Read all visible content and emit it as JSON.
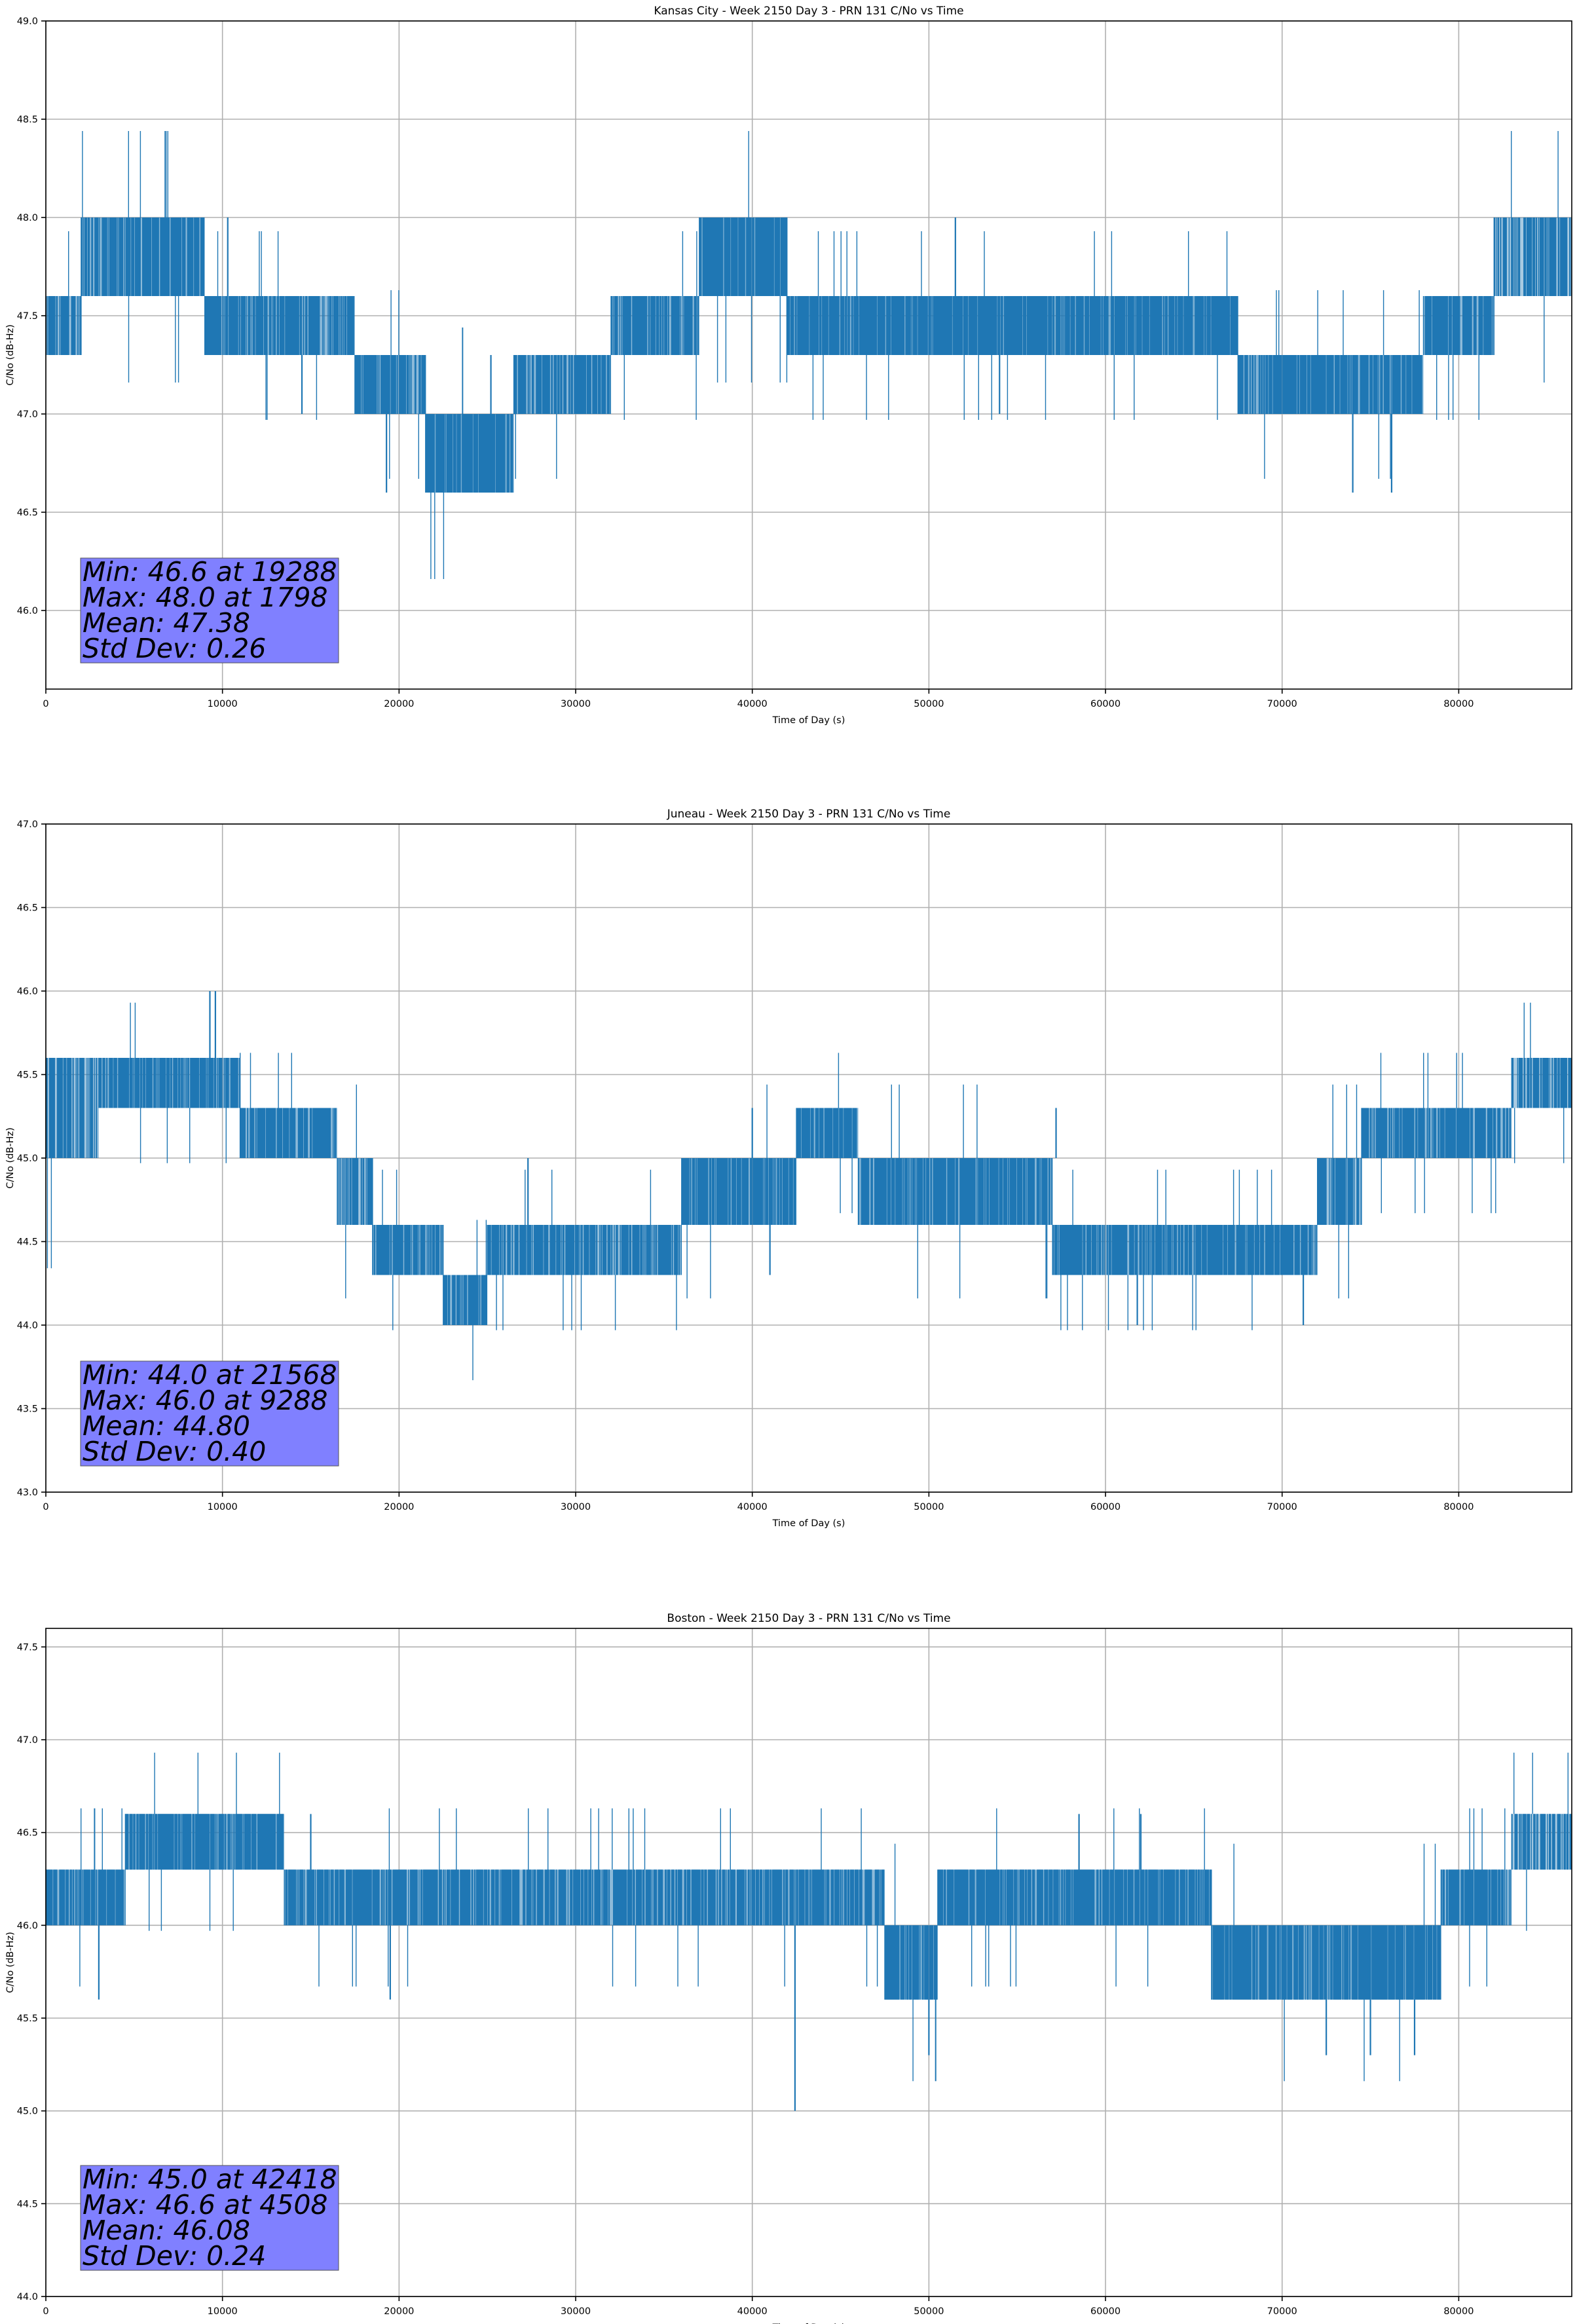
{
  "figure": {
    "background": "#ffffff",
    "series_color": "#1f77b4",
    "grid_color": "#b0b0b0",
    "stats_box_color": "#8080ff"
  },
  "chart_data": [
    {
      "type": "line",
      "title": "Kansas City - Week 2150 Day 3 - PRN 131 C/No vs Time",
      "xlabel": "Time of Day (s)",
      "ylabel": "C/No (dB-Hz)",
      "xlim": [
        0,
        86400
      ],
      "ylim": [
        45.6,
        49.0
      ],
      "xticks": [
        0,
        10000,
        20000,
        30000,
        40000,
        50000,
        60000,
        70000,
        80000
      ],
      "xtick_labels": [
        "0",
        "10000",
        "20000",
        "30000",
        "40000",
        "50000",
        "60000",
        "70000",
        "80000"
      ],
      "yticks": [
        46.0,
        46.5,
        47.0,
        47.5,
        48.0,
        48.5,
        49.0
      ],
      "ytick_labels": [
        "46.0",
        "46.5",
        "47.0",
        "47.5",
        "48.0",
        "48.5",
        "49.0"
      ],
      "grid": true,
      "bands": [
        {
          "x_start": 0,
          "x_end": 2000,
          "lo": 47.3,
          "hi": 47.6,
          "density": 0.5
        },
        {
          "x_start": 2000,
          "x_end": 9000,
          "lo": 47.6,
          "hi": 48.0,
          "density": 0.6
        },
        {
          "x_start": 9000,
          "x_end": 17500,
          "lo": 47.3,
          "hi": 47.6,
          "density": 0.6
        },
        {
          "x_start": 17500,
          "x_end": 21500,
          "lo": 47.0,
          "hi": 47.3,
          "density": 0.6
        },
        {
          "x_start": 21500,
          "x_end": 26500,
          "lo": 46.6,
          "hi": 47.0,
          "density": 0.7
        },
        {
          "x_start": 26500,
          "x_end": 32000,
          "lo": 47.0,
          "hi": 47.3,
          "density": 0.6
        },
        {
          "x_start": 32000,
          "x_end": 37000,
          "lo": 47.3,
          "hi": 47.6,
          "density": 0.6
        },
        {
          "x_start": 37000,
          "x_end": 42000,
          "lo": 47.6,
          "hi": 48.0,
          "density": 0.7
        },
        {
          "x_start": 42000,
          "x_end": 67500,
          "lo": 47.3,
          "hi": 47.6,
          "density": 0.7
        },
        {
          "x_start": 67500,
          "x_end": 78000,
          "lo": 47.0,
          "hi": 47.3,
          "density": 0.65
        },
        {
          "x_start": 78000,
          "x_end": 82000,
          "lo": 47.3,
          "hi": 47.6,
          "density": 0.6
        },
        {
          "x_start": 82000,
          "x_end": 86400,
          "lo": 47.6,
          "hi": 48.0,
          "density": 0.45
        }
      ],
      "spikes": [
        {
          "x": 10300,
          "lo": 47.6,
          "hi": 48.0
        },
        {
          "x": 14500,
          "lo": 47.0,
          "hi": 47.3
        },
        {
          "x": 19288,
          "lo": 46.6,
          "hi": 47.0
        },
        {
          "x": 25200,
          "lo": 47.0,
          "hi": 47.3
        },
        {
          "x": 51500,
          "lo": 47.6,
          "hi": 48.0
        },
        {
          "x": 54000,
          "lo": 47.0,
          "hi": 47.3
        },
        {
          "x": 74000,
          "lo": 46.6,
          "hi": 47.0
        },
        {
          "x": 76200,
          "lo": 46.6,
          "hi": 47.0
        }
      ],
      "stats": {
        "min": "Min: 46.6 at 19288",
        "max": "Max: 48.0 at 1798",
        "mean": "Mean: 47.38",
        "std": "Std Dev: 0.26"
      }
    },
    {
      "type": "line",
      "title": "Juneau - Week 2150 Day 3 - PRN 131 C/No vs Time",
      "xlabel": "Time of Day (s)",
      "ylabel": "C/No (dB-Hz)",
      "xlim": [
        0,
        86400
      ],
      "ylim": [
        43.0,
        47.0
      ],
      "xticks": [
        0,
        10000,
        20000,
        30000,
        40000,
        50000,
        60000,
        70000,
        80000
      ],
      "xtick_labels": [
        "0",
        "10000",
        "20000",
        "30000",
        "40000",
        "50000",
        "60000",
        "70000",
        "80000"
      ],
      "yticks": [
        43.0,
        43.5,
        44.0,
        44.5,
        45.0,
        45.5,
        46.0,
        46.5,
        47.0
      ],
      "ytick_labels": [
        "43.0",
        "43.5",
        "44.0",
        "44.5",
        "45.0",
        "45.5",
        "46.0",
        "46.5",
        "47.0"
      ],
      "grid": true,
      "bands": [
        {
          "x_start": 0,
          "x_end": 3000,
          "lo": 45.0,
          "hi": 45.6,
          "density": 0.5
        },
        {
          "x_start": 3000,
          "x_end": 11000,
          "lo": 45.3,
          "hi": 45.6,
          "density": 0.65
        },
        {
          "x_start": 11000,
          "x_end": 16500,
          "lo": 45.0,
          "hi": 45.3,
          "density": 0.6
        },
        {
          "x_start": 16500,
          "x_end": 18500,
          "lo": 44.6,
          "hi": 45.0,
          "density": 0.5
        },
        {
          "x_start": 18500,
          "x_end": 22500,
          "lo": 44.3,
          "hi": 44.6,
          "density": 0.6
        },
        {
          "x_start": 22500,
          "x_end": 25000,
          "lo": 44.0,
          "hi": 44.3,
          "density": 0.6
        },
        {
          "x_start": 25000,
          "x_end": 36000,
          "lo": 44.3,
          "hi": 44.6,
          "density": 0.55
        },
        {
          "x_start": 36000,
          "x_end": 42500,
          "lo": 44.6,
          "hi": 45.0,
          "density": 0.65
        },
        {
          "x_start": 42500,
          "x_end": 46000,
          "lo": 45.0,
          "hi": 45.3,
          "density": 0.65
        },
        {
          "x_start": 46000,
          "x_end": 57000,
          "lo": 44.6,
          "hi": 45.0,
          "density": 0.65
        },
        {
          "x_start": 57000,
          "x_end": 64000,
          "lo": 44.3,
          "hi": 44.6,
          "density": 0.6
        },
        {
          "x_start": 64000,
          "x_end": 72000,
          "lo": 44.3,
          "hi": 44.6,
          "density": 0.6
        },
        {
          "x_start": 72000,
          "x_end": 74500,
          "lo": 44.6,
          "hi": 45.0,
          "density": 0.5
        },
        {
          "x_start": 74500,
          "x_end": 83000,
          "lo": 45.0,
          "hi": 45.3,
          "density": 0.6
        },
        {
          "x_start": 83000,
          "x_end": 86400,
          "lo": 45.3,
          "hi": 45.6,
          "density": 0.45
        }
      ],
      "spikes": [
        {
          "x": 9288,
          "lo": 45.6,
          "hi": 46.0
        },
        {
          "x": 9600,
          "lo": 45.6,
          "hi": 46.0
        },
        {
          "x": 27300,
          "lo": 44.6,
          "hi": 45.0
        },
        {
          "x": 40000,
          "lo": 45.0,
          "hi": 45.3
        },
        {
          "x": 41000,
          "lo": 44.3,
          "hi": 44.6
        },
        {
          "x": 57200,
          "lo": 45.0,
          "hi": 45.3
        },
        {
          "x": 61800,
          "lo": 44.0,
          "hi": 44.3
        },
        {
          "x": 71200,
          "lo": 44.0,
          "hi": 44.3
        }
      ],
      "stats": {
        "min": "Min: 44.0 at 21568",
        "max": "Max: 46.0 at 9288",
        "mean": "Mean: 44.80",
        "std": "Std Dev: 0.40"
      }
    },
    {
      "type": "line",
      "title": "Boston - Week 2150 Day 3 - PRN 131 C/No vs Time",
      "xlabel": "Time of Day (s)",
      "ylabel": "C/No (dB-Hz)",
      "xlim": [
        0,
        86400
      ],
      "ylim": [
        44.0,
        47.6
      ],
      "xticks": [
        0,
        10000,
        20000,
        30000,
        40000,
        50000,
        60000,
        70000,
        80000
      ],
      "xtick_labels": [
        "0",
        "10000",
        "20000",
        "30000",
        "40000",
        "50000",
        "60000",
        "70000",
        "80000"
      ],
      "yticks": [
        44.0,
        44.5,
        45.0,
        45.5,
        46.0,
        46.5,
        47.0,
        47.5
      ],
      "ytick_labels": [
        "44.0",
        "44.5",
        "45.0",
        "45.5",
        "46.0",
        "46.5",
        "47.0",
        "47.5"
      ],
      "grid": true,
      "bands": [
        {
          "x_start": 0,
          "x_end": 4500,
          "lo": 46.0,
          "hi": 46.3,
          "density": 0.6
        },
        {
          "x_start": 4500,
          "x_end": 13500,
          "lo": 46.3,
          "hi": 46.6,
          "density": 0.65
        },
        {
          "x_start": 13500,
          "x_end": 47500,
          "lo": 46.0,
          "hi": 46.3,
          "density": 0.6
        },
        {
          "x_start": 47500,
          "x_end": 50500,
          "lo": 45.6,
          "hi": 46.0,
          "density": 0.65
        },
        {
          "x_start": 50500,
          "x_end": 66000,
          "lo": 46.0,
          "hi": 46.3,
          "density": 0.65
        },
        {
          "x_start": 66000,
          "x_end": 79000,
          "lo": 45.6,
          "hi": 46.0,
          "density": 0.7
        },
        {
          "x_start": 79000,
          "x_end": 83000,
          "lo": 46.0,
          "hi": 46.3,
          "density": 0.6
        },
        {
          "x_start": 83000,
          "x_end": 86400,
          "lo": 46.3,
          "hi": 46.6,
          "density": 0.45
        }
      ],
      "spikes": [
        {
          "x": 3000,
          "lo": 45.6,
          "hi": 46.0
        },
        {
          "x": 15000,
          "lo": 46.3,
          "hi": 46.6
        },
        {
          "x": 19500,
          "lo": 45.6,
          "hi": 46.0
        },
        {
          "x": 42418,
          "lo": 45.0,
          "hi": 46.0
        },
        {
          "x": 50000,
          "lo": 45.3,
          "hi": 45.6
        },
        {
          "x": 58500,
          "lo": 46.3,
          "hi": 46.6
        },
        {
          "x": 62000,
          "lo": 46.3,
          "hi": 46.6
        },
        {
          "x": 72500,
          "lo": 45.3,
          "hi": 45.6
        },
        {
          "x": 75000,
          "lo": 45.3,
          "hi": 45.6
        },
        {
          "x": 77500,
          "lo": 45.3,
          "hi": 45.6
        }
      ],
      "stats": {
        "min": "Min: 45.0 at 42418",
        "max": "Max: 46.6 at 4508",
        "mean": "Mean: 46.08",
        "std": "Std Dev: 0.24"
      }
    }
  ]
}
